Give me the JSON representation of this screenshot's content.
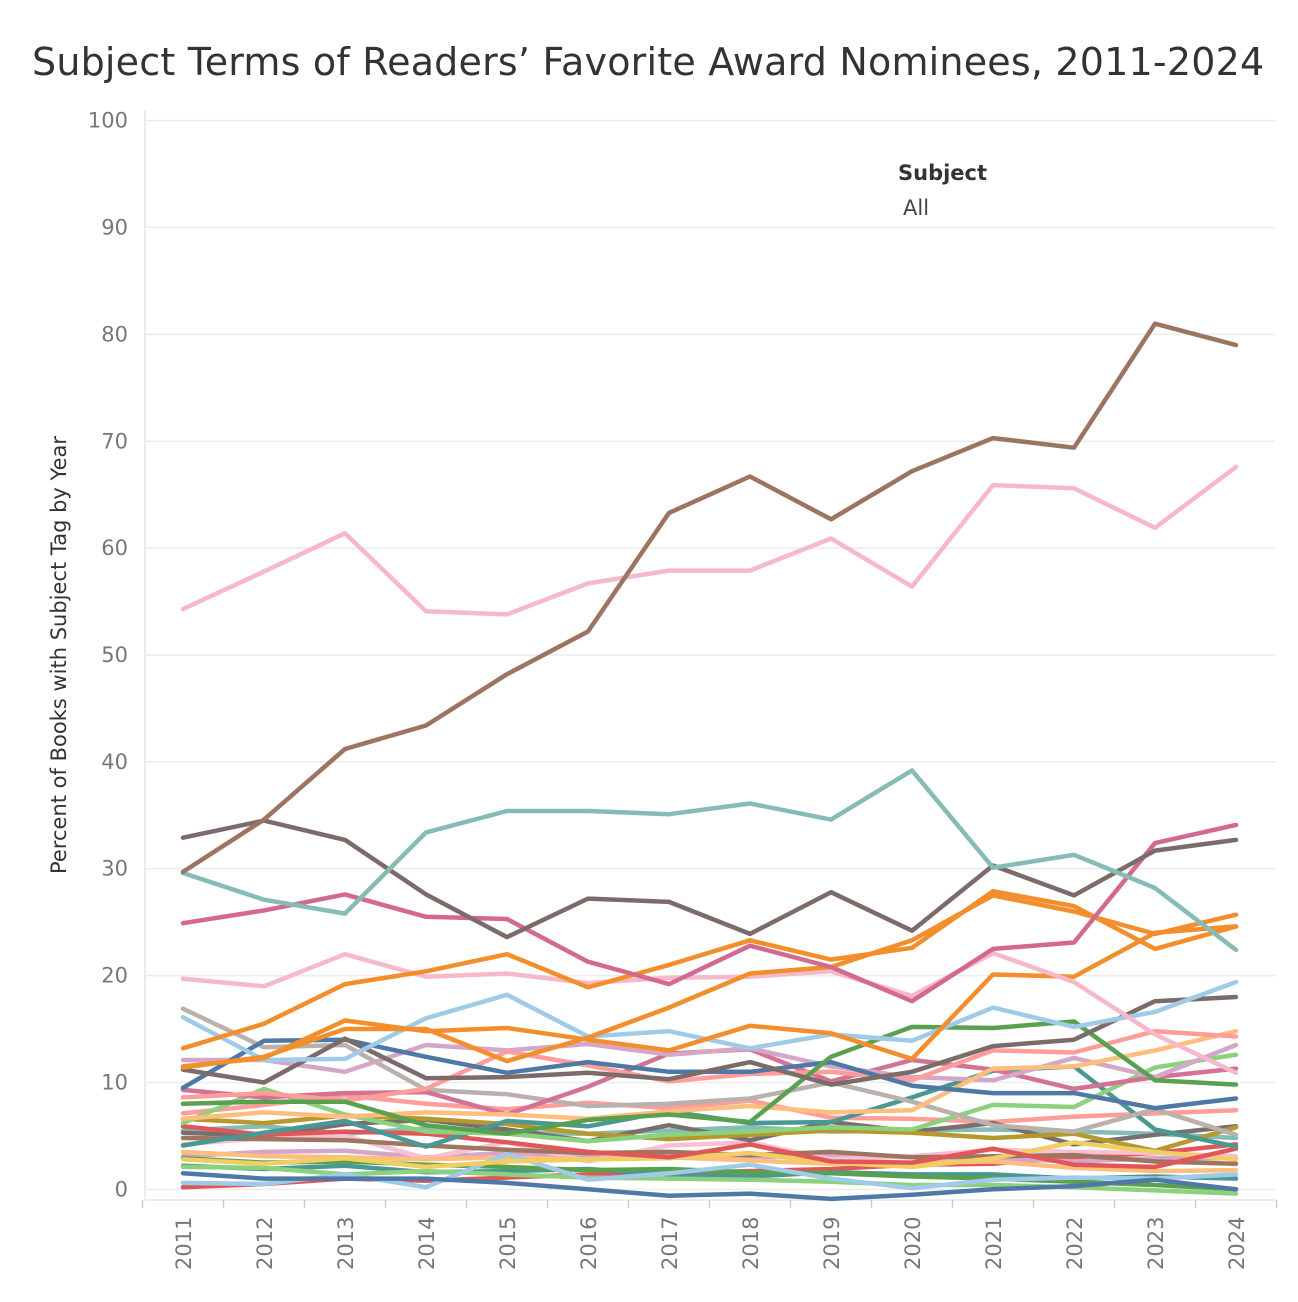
{
  "title": "Subject Terms of Readers’ Favorite Award Nominees, 2011-2024",
  "legend": {
    "title": "Subject",
    "item": "All"
  },
  "chart_data": {
    "type": "line",
    "title": "Subject Terms of Readers’ Favorite Award Nominees, 2011-2024",
    "xlabel": "",
    "ylabel": "Percent of Books with Subject Tag by Year",
    "x": [
      "2011",
      "2012",
      "2013",
      "2014",
      "2015",
      "2016",
      "2017",
      "2018",
      "2019",
      "2020",
      "2021",
      "2022",
      "2023",
      "2024"
    ],
    "ylim": [
      -1,
      101
    ],
    "yticks": [
      "0",
      "10",
      "20",
      "30",
      "40",
      "50",
      "60",
      "70",
      "80",
      "90",
      "100"
    ],
    "grid": true,
    "legend_position": "top-right",
    "series": [
      {
        "color": "#9c7460",
        "values": [
          29.7,
          34.6,
          41.2,
          43.4,
          48.2,
          52.2,
          63.3,
          66.7,
          62.7,
          67.2,
          70.3,
          69.4,
          81.0,
          79.0
        ]
      },
      {
        "color": "#f7b8cc",
        "values": [
          54.3,
          57.8,
          61.4,
          54.1,
          53.8,
          56.7,
          57.9,
          57.9,
          60.9,
          56.4,
          65.9,
          65.6,
          61.9,
          67.6
        ]
      },
      {
        "color": "#86bcb6",
        "values": [
          29.6,
          27.1,
          25.8,
          33.4,
          35.4,
          35.4,
          35.1,
          36.1,
          34.6,
          39.2,
          30.1,
          31.3,
          28.2,
          22.4
        ]
      },
      {
        "color": "#7b6c6a",
        "values": [
          32.9,
          34.5,
          32.7,
          27.6,
          23.6,
          27.2,
          26.9,
          23.9,
          27.8,
          24.2,
          30.3,
          27.5,
          31.7,
          32.7
        ]
      },
      {
        "color": "#d4698f",
        "values": [
          24.9,
          26.1,
          27.6,
          25.5,
          25.3,
          21.3,
          19.2,
          22.8,
          20.8,
          17.6,
          22.5,
          23.1,
          32.4,
          34.1
        ]
      },
      {
        "color": "#f28e2b",
        "values": [
          11.4,
          12.4,
          15.0,
          15.0,
          12.0,
          14.2,
          17.0,
          20.2,
          20.8,
          23.3,
          27.5,
          26.0,
          23.9,
          25.7
        ]
      },
      {
        "color": "#f28e2b",
        "values": [
          13.2,
          15.5,
          19.2,
          20.4,
          22.0,
          18.9,
          21.0,
          23.3,
          21.5,
          22.6,
          27.9,
          26.5,
          22.5,
          24.6
        ]
      },
      {
        "color": "#f7b8cc",
        "values": [
          19.7,
          19.0,
          22.0,
          19.9,
          20.2,
          19.3,
          19.8,
          19.9,
          20.4,
          18.1,
          22.1,
          19.4,
          14.5,
          10.9
        ]
      },
      {
        "color": "#f28e2b",
        "values": [
          11.5,
          12.3,
          15.8,
          14.8,
          15.1,
          14.0,
          13.0,
          15.3,
          14.6,
          12.2,
          20.1,
          19.9,
          24.0,
          24.6
        ]
      },
      {
        "color": "#a0cbe8",
        "values": [
          16.1,
          12.1,
          12.2,
          16.0,
          18.2,
          14.3,
          14.8,
          13.2,
          14.5,
          13.9,
          17.0,
          15.2,
          16.6,
          19.4
        ]
      },
      {
        "color": "#7b6c6a",
        "values": [
          11.2,
          10.0,
          14.1,
          10.4,
          10.5,
          10.9,
          10.3,
          11.9,
          9.8,
          11.0,
          13.4,
          14.0,
          17.6,
          18.0
        ]
      },
      {
        "color": "#59a14f",
        "values": [
          8.0,
          8.2,
          8.2,
          6.0,
          5.2,
          6.5,
          7.0,
          6.3,
          12.4,
          15.2,
          15.1,
          15.7,
          10.2,
          9.8
        ]
      },
      {
        "color": "#4e79a7",
        "values": [
          9.5,
          13.9,
          14.0,
          12.4,
          10.9,
          11.9,
          11.0,
          11.0,
          11.9,
          9.7,
          9.0,
          9.0,
          7.6,
          8.5
        ]
      },
      {
        "color": "#ff9d9a",
        "values": [
          8.6,
          9.0,
          8.3,
          9.4,
          12.9,
          11.6,
          10.1,
          10.8,
          11.0,
          10.2,
          13.0,
          12.8,
          14.8,
          14.3
        ]
      },
      {
        "color": "#ffbe7d",
        "values": [
          6.6,
          7.2,
          6.8,
          7.2,
          7.0,
          6.6,
          7.3,
          7.8,
          7.2,
          7.4,
          11.3,
          11.5,
          13.0,
          14.8
        ]
      },
      {
        "color": "#d4a6c8",
        "values": [
          12.1,
          12.1,
          11.0,
          13.5,
          13.0,
          13.6,
          12.6,
          13.2,
          11.5,
          10.5,
          10.2,
          12.3,
          10.5,
          13.5
        ]
      },
      {
        "color": "#d37295",
        "values": [
          9.3,
          8.6,
          9.0,
          9.1,
          7.0,
          9.6,
          12.7,
          13.1,
          10.1,
          12.1,
          11.2,
          9.4,
          10.5,
          11.3
        ]
      },
      {
        "color": "#bab0ac",
        "values": [
          16.9,
          13.3,
          13.5,
          9.3,
          8.9,
          7.8,
          8.0,
          8.5,
          10.0,
          8.2,
          6.0,
          5.4,
          7.5,
          5.1
        ]
      },
      {
        "color": "#8cd17d",
        "values": [
          6.2,
          9.4,
          7.0,
          5.4,
          5.2,
          4.5,
          5.1,
          5.4,
          5.8,
          5.6,
          7.9,
          7.7,
          11.4,
          12.6
        ]
      },
      {
        "color": "#499894",
        "values": [
          4.1,
          5.3,
          6.4,
          4.0,
          6.4,
          5.9,
          7.3,
          6.2,
          6.3,
          8.6,
          11.1,
          11.5,
          5.6,
          4.0
        ]
      },
      {
        "color": "#e15759",
        "values": [
          5.9,
          5.1,
          5.4,
          5.2,
          4.4,
          3.5,
          3.0,
          4.2,
          2.6,
          2.5,
          3.8,
          2.3,
          2.1,
          3.8
        ]
      },
      {
        "color": "#f1ce63",
        "values": [
          2.8,
          2.4,
          2.9,
          2.1,
          2.6,
          2.8,
          2.9,
          3.4,
          2.5,
          2.1,
          2.9,
          4.4,
          3.5,
          2.8
        ]
      },
      {
        "color": "#b6992d",
        "values": [
          6.6,
          6.2,
          6.9,
          6.6,
          6.1,
          5.2,
          4.7,
          5.1,
          5.5,
          5.3,
          4.8,
          5.2,
          3.6,
          5.8
        ]
      },
      {
        "color": "#4e79a7",
        "values": [
          1.5,
          1.0,
          1.0,
          1.0,
          0.6,
          0.0,
          -0.6,
          -0.4,
          -0.9,
          -0.5,
          0.0,
          0.3,
          0.9,
          0.0
        ]
      },
      {
        "color": "#9d7660",
        "values": [
          4.8,
          4.7,
          4.6,
          4.1,
          3.7,
          3.4,
          3.5,
          3.2,
          3.5,
          3.0,
          3.1,
          3.2,
          2.6,
          2.4
        ]
      },
      {
        "color": "#a0cbe8",
        "values": [
          0.6,
          0.5,
          1.4,
          0.2,
          3.3,
          0.9,
          1.5,
          2.3,
          1.0,
          0.1,
          0.9,
          1.1,
          1.0,
          1.4
        ]
      },
      {
        "color": "#79706e",
        "values": [
          5.3,
          5.0,
          6.1,
          6.5,
          5.6,
          4.5,
          6.0,
          4.6,
          6.3,
          5.4,
          6.2,
          4.2,
          5.1,
          5.9
        ]
      },
      {
        "color": "#8cd17d",
        "values": [
          2.1,
          2.0,
          1.4,
          1.7,
          1.4,
          1.1,
          1.0,
          0.9,
          0.7,
          0.4,
          0.4,
          0.2,
          -0.1,
          -0.4
        ]
      },
      {
        "color": "#ffbe7d",
        "values": [
          3.5,
          3.1,
          3.0,
          2.8,
          3.0,
          2.8,
          3.0,
          2.7,
          2.4,
          2.5,
          2.6,
          2.0,
          1.7,
          1.8
        ]
      },
      {
        "color": "#59a14f",
        "values": [
          2.9,
          2.5,
          2.6,
          2.3,
          2.1,
          1.8,
          1.9,
          1.6,
          1.5,
          1.2,
          1.0,
          0.7,
          0.4,
          0.0
        ]
      },
      {
        "color": "#fabfd2",
        "values": [
          4.2,
          4.8,
          5.0,
          2.9,
          4.4,
          2.6,
          4.1,
          4.4,
          2.8,
          3.1,
          3.7,
          3.5,
          3.4,
          3.1
        ]
      },
      {
        "color": "#499894",
        "values": [
          2.2,
          1.9,
          2.2,
          1.6,
          1.7,
          1.9,
          1.4,
          1.2,
          1.6,
          1.4,
          1.4,
          1.0,
          1.2,
          1.0
        ]
      },
      {
        "color": "#ff9d9a",
        "values": [
          7.1,
          7.9,
          8.8,
          8.0,
          7.5,
          8.1,
          7.6,
          8.3,
          6.7,
          6.6,
          6.3,
          6.8,
          7.1,
          7.4
        ]
      },
      {
        "color": "#d4a6c8",
        "values": [
          3.1,
          3.5,
          3.6,
          3.0,
          3.4,
          3.1,
          3.3,
          3.0,
          3.2,
          3.0,
          2.9,
          2.6,
          2.9,
          2.9
        ]
      },
      {
        "color": "#e15759",
        "values": [
          0.2,
          0.5,
          1.0,
          0.8,
          1.1,
          1.4,
          1.5,
          1.7,
          1.9,
          2.3,
          2.4,
          3.0,
          3.4,
          4.2
        ]
      },
      {
        "color": "#86bcb6",
        "values": [
          5.5,
          5.9,
          5.2,
          5.7,
          5.3,
          5.2,
          5.5,
          5.8,
          5.4,
          5.5,
          5.6,
          5.4,
          5.2,
          4.8
        ]
      }
    ]
  }
}
